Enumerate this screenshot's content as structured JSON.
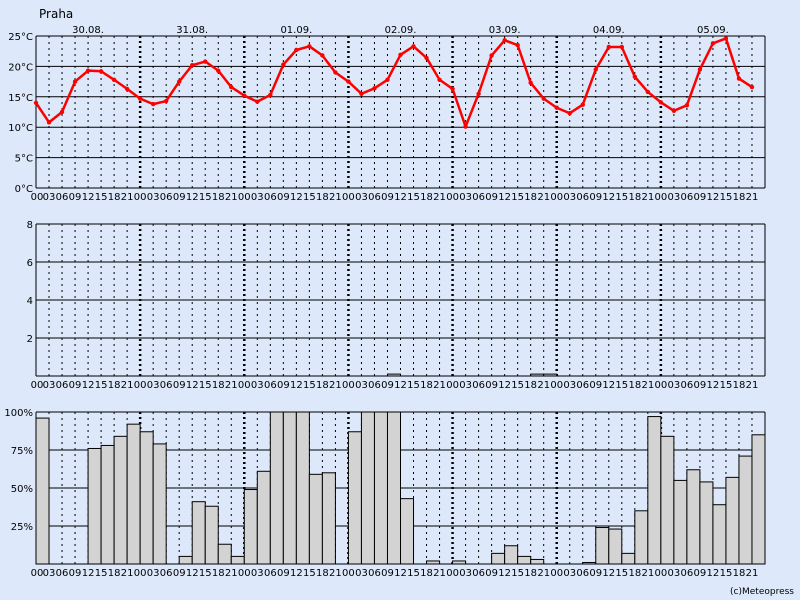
{
  "page": {
    "title": "Praha",
    "credit": "(c)Meteopress"
  },
  "colors": {
    "background": "#dde9fb",
    "temperature_line": "#ff0000",
    "bar_fill": "#d3d3d3",
    "grid": "#000000"
  },
  "hour_labels": [
    "00",
    "03",
    "06",
    "09",
    "12",
    "15",
    "18",
    "21"
  ],
  "chart_data": [
    {
      "type": "line",
      "name": "temperature",
      "day_labels": [
        "30.08.",
        "31.08.",
        "01.09.",
        "02.09.",
        "03.09.",
        "04.09.",
        "05.09."
      ],
      "y_tick_labels": [
        "0°C",
        "5°C",
        "10°C",
        "15°C",
        "20°C",
        "25°C"
      ],
      "ylim": [
        0,
        25
      ],
      "grid": true,
      "values": [
        14.0,
        10.8,
        12.5,
        17.5,
        19.3,
        19.2,
        17.8,
        16.3,
        14.7,
        13.8,
        14.3,
        17.5,
        20.2,
        20.8,
        19.3,
        16.6,
        15.2,
        14.2,
        15.3,
        20.3,
        22.7,
        23.3,
        21.8,
        19.0,
        17.5,
        15.5,
        16.4,
        17.8,
        21.9,
        23.3,
        21.4,
        17.8,
        16.3,
        10.1,
        15.5,
        21.8,
        24.3,
        23.5,
        17.3,
        14.7,
        13.2,
        12.3,
        13.7,
        19.5,
        23.2,
        23.2,
        18.3,
        15.8,
        14.1,
        12.7,
        13.6,
        19.5,
        23.8,
        24.6,
        18.0,
        16.6
      ]
    },
    {
      "type": "bar",
      "name": "precipitation",
      "y_tick_labels": [
        "2",
        "4",
        "6",
        "8"
      ],
      "ylim": [
        0,
        8
      ],
      "grid": true,
      "values": [
        0,
        0,
        0,
        0,
        0,
        0,
        0,
        0,
        0,
        0,
        0,
        0,
        0,
        0,
        0,
        0,
        0,
        0,
        0,
        0,
        0,
        0,
        0,
        0,
        0,
        0,
        0,
        0.1,
        0,
        0,
        0,
        0,
        0,
        0,
        0,
        0,
        0,
        0,
        0.1,
        0.1,
        0,
        0,
        0,
        0,
        0,
        0,
        0,
        0,
        0,
        0,
        0,
        0,
        0,
        0,
        0,
        0
      ]
    },
    {
      "type": "bar",
      "name": "cloudiness",
      "y_tick_labels": [
        "25%",
        "50%",
        "75%",
        "100%"
      ],
      "ylim": [
        0,
        100
      ],
      "grid": true,
      "values": [
        96,
        0,
        0,
        0,
        76,
        78,
        84,
        92,
        87,
        79,
        0,
        5,
        41,
        38,
        13,
        5,
        49,
        61,
        100,
        100,
        100,
        59,
        60,
        0,
        87,
        100,
        100,
        100,
        43,
        0,
        2,
        0,
        2,
        0,
        0,
        7,
        12,
        5,
        3,
        0,
        0,
        0,
        1,
        24,
        23,
        7,
        35,
        97,
        84,
        55,
        62,
        54,
        39,
        57,
        71,
        85
      ]
    }
  ]
}
